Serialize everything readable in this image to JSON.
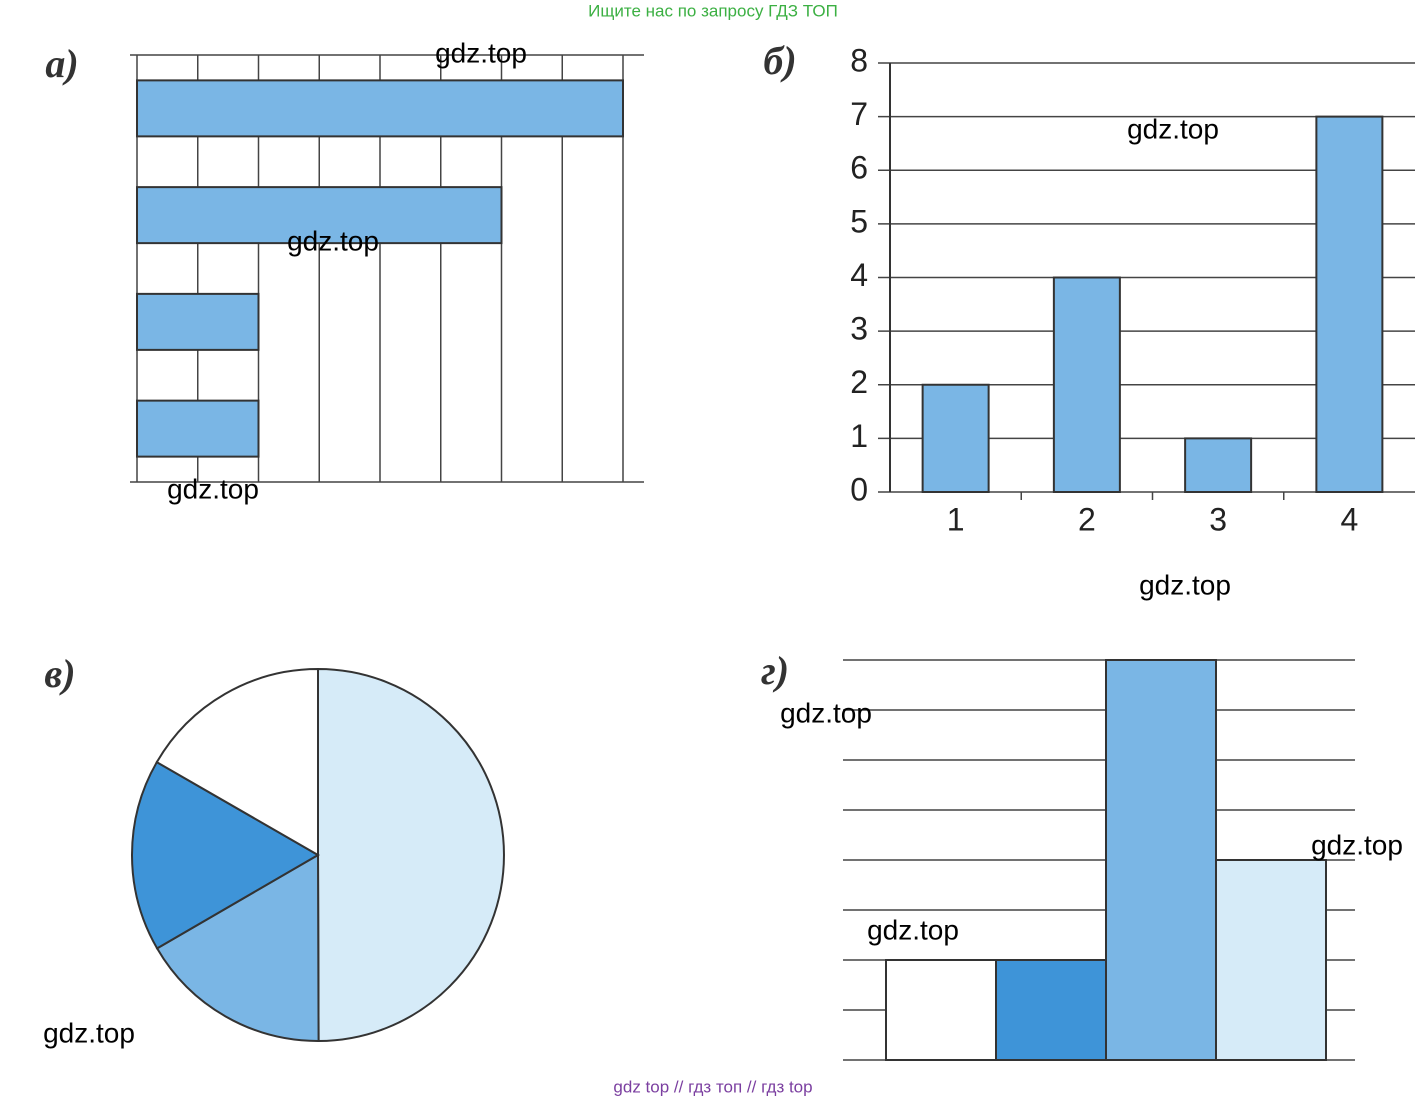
{
  "header": "Ищите нас по запросу ГДЗ ТОП",
  "footer": "gdz top  //  гдз топ  //  гдз top",
  "watermarks": [
    "gdz.top",
    "gdz.top",
    "gdz.top",
    "gdz.top",
    "gdz.top",
    "gdz.top",
    "gdz.top",
    "gdz.top",
    "gdz.top"
  ],
  "chart_data": [
    {
      "type": "barh",
      "title": "а)",
      "values": [
        8,
        6,
        2,
        2
      ],
      "color": "#7ab6e5",
      "xlim": [
        0,
        8
      ],
      "xticks": [
        0,
        1,
        2,
        3,
        4,
        5,
        6,
        7,
        8
      ],
      "grid": true,
      "tick_labels": false
    },
    {
      "type": "bar",
      "title": "б)",
      "categories": [
        "1",
        "2",
        "3",
        "4"
      ],
      "values": [
        2,
        4,
        1,
        7
      ],
      "color": "#7ab6e5",
      "ylim": [
        0,
        8
      ],
      "yticks": [
        0,
        1,
        2,
        3,
        4,
        5,
        6,
        7,
        8
      ],
      "grid": true,
      "tick_labels": true
    },
    {
      "type": "pie",
      "title": "в)",
      "values": [
        50,
        16.7,
        16.7,
        16.7
      ],
      "colors": [
        "#d6ebf8",
        "#7ab6e5",
        "#3e94d8",
        "#ffffff"
      ]
    },
    {
      "type": "bar",
      "title": "г)",
      "values": [
        2,
        2,
        8,
        4
      ],
      "colors": [
        "#ffffff",
        "#3e94d8",
        "#7ab6e5",
        "#d6ebf8"
      ],
      "ylim": [
        0,
        8
      ],
      "yticks": [
        0,
        1,
        2,
        3,
        4,
        5,
        6,
        7,
        8
      ],
      "grid": true,
      "tick_labels": false
    }
  ]
}
